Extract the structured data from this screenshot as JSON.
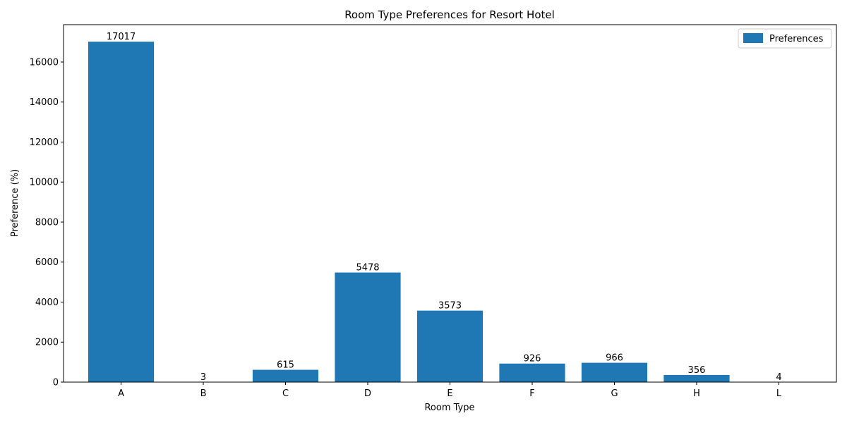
{
  "chart_data": {
    "type": "bar",
    "title": "Room Type Preferences for Resort Hotel",
    "xlabel": "Room Type",
    "ylabel": "Preference (%)",
    "categories": [
      "A",
      "B",
      "C",
      "D",
      "E",
      "F",
      "G",
      "H",
      "L"
    ],
    "series": [
      {
        "name": "Preferences",
        "values": [
          17017,
          3,
          615,
          5478,
          3573,
          926,
          966,
          356,
          4
        ]
      }
    ],
    "ylim": [
      0,
      17867
    ],
    "yticks": [
      0,
      2000,
      4000,
      6000,
      8000,
      10000,
      12000,
      14000,
      16000
    ],
    "grid": false,
    "legend_position": "top-right",
    "bar_color": "#1f77b4",
    "data_labels": true
  }
}
